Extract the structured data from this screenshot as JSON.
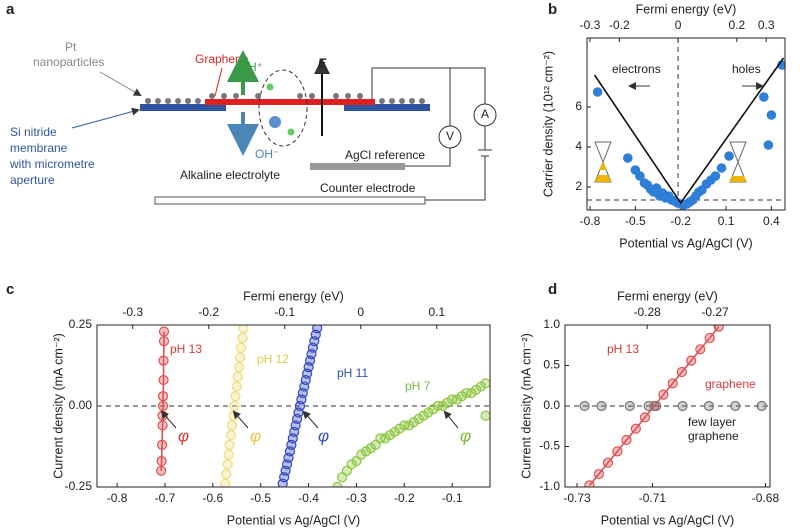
{
  "diagram": {
    "panel": "a",
    "pt_label": [
      "Pt",
      "nanoparticles"
    ],
    "graphene": "Graphene",
    "h_plus": "H⁺",
    "field": "E",
    "membrane": [
      "Si nitride",
      "membrane",
      "with micrometre",
      "aperture"
    ],
    "oh": "OH⁻",
    "reference": "AgCl reference",
    "electrolyte": "Alkaline electrolyte",
    "counter": "Counter electrode",
    "voltmeter": "V",
    "ammeter": "A"
  },
  "chart_data": [
    {
      "type": "scatter",
      "panel": "b",
      "xlabel": "Potential vs Ag/AgCl (V)",
      "x2label": "Fermi energy (eV)",
      "ylabel": "Carrier density (10¹² cm⁻²)",
      "xlim": [
        -0.82,
        0.49
      ],
      "xticks": [
        -0.8,
        -0.5,
        -0.2,
        0.1,
        0.4
      ],
      "x2lim": [
        -0.31,
        0.364
      ],
      "x2ticks": [
        -0.3,
        -0.2,
        0,
        0.2,
        0.3
      ],
      "ylim": [
        0.85,
        9.45
      ],
      "yticks": [
        2,
        4,
        6
      ],
      "hlines": [
        1.35
      ],
      "x2lines": [
        0
      ],
      "annotations": [
        {
          "text": "electrons",
          "color": "#222"
        },
        {
          "text": "holes",
          "color": "#222"
        }
      ],
      "series": [
        {
          "color": "#2f7fd8",
          "x": [
            -0.75,
            -0.55,
            -0.5,
            -0.47,
            -0.44,
            -0.42,
            -0.4,
            -0.38,
            -0.36,
            -0.34,
            -0.32,
            -0.3,
            -0.28,
            -0.26,
            -0.24,
            -0.22,
            -0.2,
            -0.18,
            -0.16,
            -0.14,
            -0.12,
            -0.1,
            -0.08,
            -0.06,
            -0.03,
            0.0,
            0.03,
            0.07,
            0.12,
            0.35,
            0.38,
            0.4,
            0.47
          ],
          "values": [
            6.75,
            3.45,
            2.85,
            2.55,
            2.2,
            2.1,
            1.9,
            1.75,
            1.95,
            1.55,
            1.7,
            1.45,
            1.55,
            1.35,
            1.3,
            1.2,
            1.15,
            1.1,
            1.15,
            1.25,
            1.35,
            1.55,
            1.75,
            1.85,
            2.15,
            2.35,
            2.55,
            2.95,
            3.55,
            6.5,
            4.1,
            5.6,
            8.1
          ],
          "markers": true,
          "line": false
        },
        {
          "color": "#111111",
          "x": [
            -0.77,
            -0.2,
            0.48
          ],
          "values": [
            7.6,
            1.2,
            8.45
          ],
          "markers": false,
          "line": true
        }
      ]
    },
    {
      "type": "scatter",
      "panel": "c",
      "xlabel": "Potential vs Ag/AgCl (V)",
      "x2label": "Fermi energy (eV)",
      "ylabel": "Current density (mA cm⁻²)",
      "xlim": [
        -0.842,
        -0.021
      ],
      "xticks": [
        -0.8,
        -0.7,
        -0.6,
        -0.5,
        -0.4,
        -0.3,
        -0.2,
        -0.1
      ],
      "x2lim": [
        -0.347,
        0.17
      ],
      "x2ticks": [
        -0.3,
        -0.2,
        -0.1,
        0,
        0.1
      ],
      "ylim": [
        -0.25,
        0.25
      ],
      "yticks": [
        -0.25,
        {
          "value": 0,
          "label": "0.00"
        },
        0.25
      ],
      "hlines": [
        0
      ],
      "x2lines": [],
      "annotations": [
        {
          "text": "pH 13",
          "color": "#d93a3a"
        },
        {
          "text": "pH 12",
          "color": "#e6c84a"
        },
        {
          "text": "pH 11",
          "color": "#2f4fb8"
        },
        {
          "text": "pH 7",
          "color": "#7db83a"
        },
        {
          "text": "φ",
          "color": "#d93a3a"
        },
        {
          "text": "φ",
          "color": "#e6c84a"
        },
        {
          "text": "φ",
          "color": "#2f4fb8"
        },
        {
          "text": "φ",
          "color": "#7db83a"
        }
      ],
      "series": [
        {
          "name": "pH 13",
          "color": "#e05050",
          "x": [
            -0.708,
            -0.707,
            -0.706,
            -0.705,
            -0.705,
            -0.704,
            -0.704,
            -0.703,
            -0.703,
            -0.702,
            -0.702
          ],
          "values": [
            -0.2,
            -0.17,
            -0.12,
            -0.06,
            -0.03,
            0,
            0.03,
            0.08,
            0.14,
            0.2,
            0.23
          ],
          "markers": true,
          "line": true
        },
        {
          "name": "pH 12",
          "color": "#eedc7a",
          "x": [
            -0.574,
            -0.572,
            -0.569,
            -0.567,
            -0.565,
            -0.562,
            -0.56,
            -0.557,
            -0.555,
            -0.553,
            -0.55,
            -0.548,
            -0.545,
            -0.543,
            -0.541,
            -0.538,
            -0.536
          ],
          "values": [
            -0.24,
            -0.21,
            -0.18,
            -0.15,
            -0.12,
            -0.09,
            -0.06,
            -0.03,
            0,
            0.03,
            0.06,
            0.09,
            0.12,
            0.15,
            0.18,
            0.21,
            0.24
          ],
          "markers": true,
          "line": false
        },
        {
          "name": "pH 11",
          "color": "#3448c0",
          "x": [
            -0.454,
            -0.451,
            -0.448,
            -0.445,
            -0.442,
            -0.439,
            -0.436,
            -0.433,
            -0.43,
            -0.427,
            -0.424,
            -0.421,
            -0.418,
            -0.415,
            -0.412,
            -0.409,
            -0.406,
            -0.403,
            -0.4,
            -0.397,
            -0.394,
            -0.391,
            -0.388,
            -0.385,
            -0.382
          ],
          "values": [
            -0.24,
            -0.22,
            -0.2,
            -0.18,
            -0.16,
            -0.14,
            -0.12,
            -0.1,
            -0.08,
            -0.06,
            -0.04,
            -0.02,
            0,
            0.02,
            0.04,
            0.06,
            0.08,
            0.1,
            0.12,
            0.14,
            0.16,
            0.18,
            0.2,
            0.22,
            0.24
          ],
          "markers": true,
          "line": false
        },
        {
          "name": "pH 7",
          "color": "#8cc63f",
          "x": [
            -0.34,
            -0.33,
            -0.32,
            -0.31,
            -0.3,
            -0.29,
            -0.28,
            -0.27,
            -0.26,
            -0.25,
            -0.24,
            -0.23,
            -0.22,
            -0.21,
            -0.2,
            -0.19,
            -0.18,
            -0.17,
            -0.16,
            -0.15,
            -0.14,
            -0.13,
            -0.12,
            -0.11,
            -0.1,
            -0.09,
            -0.08,
            -0.07,
            -0.06,
            -0.05,
            -0.04,
            -0.03,
            -0.03
          ],
          "values": [
            -0.25,
            -0.22,
            -0.2,
            -0.18,
            -0.17,
            -0.15,
            -0.14,
            -0.13,
            -0.12,
            -0.1,
            -0.1,
            -0.09,
            -0.08,
            -0.07,
            -0.06,
            -0.06,
            -0.05,
            -0.04,
            -0.03,
            -0.02,
            -0.01,
            0,
            0,
            0.01,
            0.02,
            0.02,
            0.03,
            0.04,
            0.04,
            0.05,
            0.06,
            0.07,
            -0.03
          ],
          "markers": true,
          "line": false
        }
      ]
    },
    {
      "type": "scatter",
      "panel": "d",
      "xlabel": "Potential vs Ag/AgCl (V)",
      "x2label": "Fermi energy (eV)",
      "ylabel": "Current density (mA cm⁻²)",
      "xlim": [
        -0.7332,
        -0.6788
      ],
      "xticks": [
        -0.73,
        -0.71,
        -0.68
      ],
      "x2lim": [
        -0.2921,
        -0.2619
      ],
      "x2ticks": [
        -0.28,
        -0.27
      ],
      "ylim": [
        -1,
        1
      ],
      "yticks": [
        {
          "value": -1,
          "label": "-1.0"
        },
        -0.5,
        {
          "value": 0,
          "label": "0.0"
        },
        0.5,
        {
          "value": 1,
          "label": "1.0"
        }
      ],
      "hlines": [
        0
      ],
      "x2lines": [],
      "annotations": [
        {
          "text": "pH 13",
          "color": "#d93a3a"
        },
        {
          "text": "graphene",
          "color": "#d93a3a"
        },
        {
          "text": "few layer",
          "color": "#222"
        },
        {
          "text": "graphene",
          "color": "#222"
        }
      ],
      "series": [
        {
          "color": "#e05050",
          "x": [
            -0.7267,
            -0.7242,
            -0.7218,
            -0.7193,
            -0.7169,
            -0.7144,
            -0.712,
            -0.7095,
            -0.7071,
            -0.7046,
            -0.7022,
            -0.6997,
            -0.6973,
            -0.6948,
            -0.6924
          ],
          "values": [
            -0.98,
            -0.84,
            -0.7,
            -0.56,
            -0.42,
            -0.28,
            -0.14,
            0,
            0.14,
            0.28,
            0.42,
            0.56,
            0.7,
            0.84,
            0.98
          ],
          "markers": true,
          "line": true
        },
        {
          "color": "#777777",
          "x": [
            -0.728,
            -0.7235,
            -0.716,
            -0.711,
            -0.709,
            -0.702,
            -0.695,
            -0.688,
            -0.681
          ],
          "values": [
            0,
            0,
            0,
            0,
            0,
            0,
            0,
            0,
            0
          ],
          "markers": true,
          "line": false
        }
      ]
    }
  ]
}
